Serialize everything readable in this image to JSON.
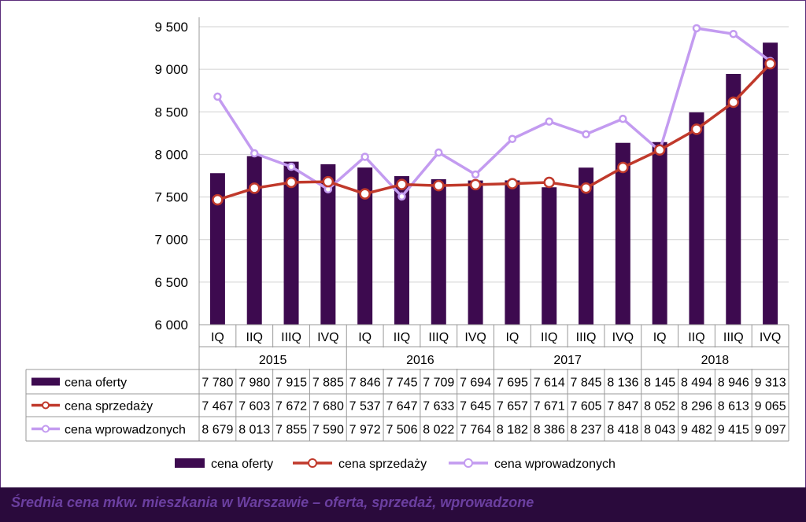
{
  "caption": "Średnia cena mkw. mieszkania w Warszawie – oferta, sprzedaż, wprowadzone",
  "chart_data": {
    "type": "bar",
    "ylim": [
      6000,
      9500
    ],
    "y_ticks": [
      "6 000",
      "6 500",
      "7 000",
      "7 500",
      "8 000",
      "8 500",
      "9 000",
      "9 500"
    ],
    "y_tick_values": [
      6000,
      6500,
      7000,
      7500,
      8000,
      8500,
      9000,
      9500
    ],
    "quarters": [
      "IQ",
      "IIQ",
      "IIIQ",
      "IVQ",
      "IQ",
      "IIQ",
      "IIIQ",
      "IVQ",
      "IQ",
      "IIQ",
      "IIIQ",
      "IVQ",
      "IQ",
      "IIQ",
      "IIIQ",
      "IVQ"
    ],
    "years": [
      "2015",
      "2016",
      "2017",
      "2018"
    ],
    "legend_position": "bottom",
    "grid": true,
    "series": [
      {
        "name": "cena oferty",
        "type": "bar",
        "color": "#3d0a4f",
        "values": [
          7780,
          7980,
          7915,
          7885,
          7846,
          7745,
          7709,
          7694,
          7695,
          7614,
          7845,
          8136,
          8145,
          8494,
          8946,
          9313
        ],
        "labels": [
          "7 780",
          "7 980",
          "7 915",
          "7 885",
          "7 846",
          "7 745",
          "7 709",
          "7 694",
          "7 695",
          "7 614",
          "7 845",
          "8 136",
          "8 145",
          "8 494",
          "8 946",
          "9 313"
        ]
      },
      {
        "name": "cena sprzedaży",
        "type": "line",
        "color": "#c0392b",
        "values": [
          7467,
          7603,
          7672,
          7680,
          7537,
          7647,
          7633,
          7645,
          7657,
          7671,
          7605,
          7847,
          8052,
          8296,
          8613,
          9065
        ],
        "labels": [
          "7 467",
          "7 603",
          "7 672",
          "7 680",
          "7 537",
          "7 647",
          "7 633",
          "7 645",
          "7 657",
          "7 671",
          "7 605",
          "7 847",
          "8 052",
          "8 296",
          "8 613",
          "9 065"
        ]
      },
      {
        "name": "cena wprowadzonych",
        "type": "line",
        "color": "#c39bf0",
        "values": [
          8679,
          8013,
          7855,
          7590,
          7972,
          7506,
          8022,
          7764,
          8182,
          8386,
          8237,
          8418,
          8043,
          9482,
          9415,
          9097
        ],
        "labels": [
          "8 679",
          "8 013",
          "7 855",
          "7 590",
          "7 972",
          "7 506",
          "8 022",
          "7 764",
          "8 182",
          "8 386",
          "8 237",
          "8 418",
          "8 043",
          "9 482",
          "9 415",
          "9 097"
        ]
      }
    ]
  }
}
